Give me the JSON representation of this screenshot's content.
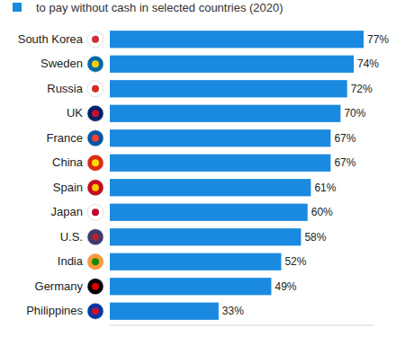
{
  "chart_data": {
    "type": "bar",
    "orientation": "horizontal",
    "subtitle": "to pay without cash in selected countries (2020)",
    "categories": [
      "South Korea",
      "Sweden",
      "Russia",
      "UK",
      "France",
      "China",
      "Spain",
      "Japan",
      "U.S.",
      "India",
      "Germany",
      "Philippines"
    ],
    "values": [
      77,
      74,
      72,
      70,
      67,
      67,
      61,
      60,
      58,
      52,
      49,
      33
    ],
    "value_labels": [
      "77%",
      "74%",
      "72%",
      "70%",
      "67%",
      "67%",
      "61%",
      "60%",
      "58%",
      "52%",
      "49%",
      "33%"
    ],
    "color": "#1a8ae0",
    "xlim": [
      0,
      80
    ],
    "data_labels": true,
    "tick_labels": "y",
    "grid": false
  }
}
